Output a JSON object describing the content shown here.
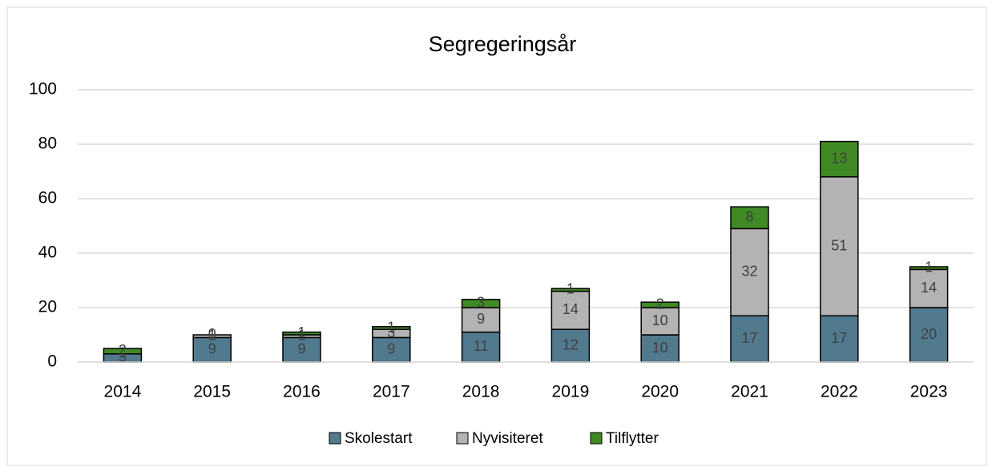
{
  "chart_data": {
    "type": "stacked_bar",
    "title": "Segregeringsår",
    "categories": [
      "2014",
      "2015",
      "2016",
      "2017",
      "2018",
      "2019",
      "2020",
      "2021",
      "2022",
      "2023"
    ],
    "series": [
      {
        "name": "Skolestart",
        "color": "#527a8f",
        "values": [
          3,
          9,
          9,
          9,
          11,
          12,
          10,
          17,
          17,
          20
        ]
      },
      {
        "name": "Nyvisiteret",
        "color": "#b3b3b3",
        "values": [
          0,
          1,
          1,
          3,
          9,
          14,
          10,
          32,
          51,
          14
        ]
      },
      {
        "name": "Tilflytter",
        "color": "#3f8a24",
        "values": [
          2,
          0,
          1,
          1,
          3,
          1,
          2,
          8,
          13,
          1
        ]
      }
    ],
    "ylim": [
      0,
      100
    ],
    "yticks": [
      0,
      20,
      40,
      60,
      80,
      100
    ],
    "grid": true,
    "legend": "bottom"
  }
}
